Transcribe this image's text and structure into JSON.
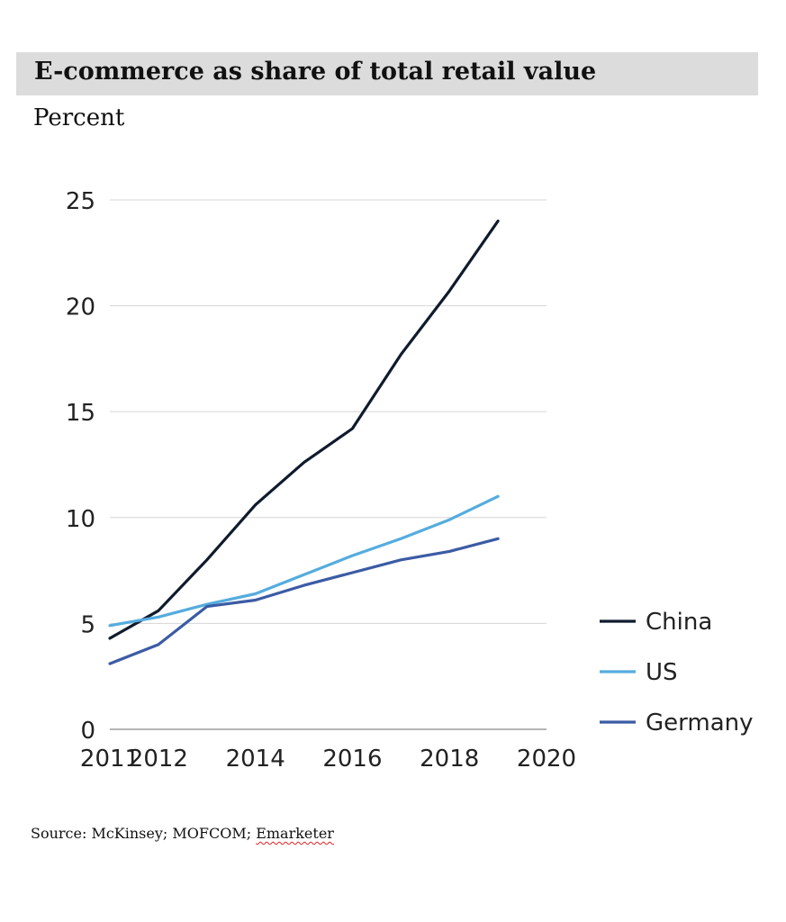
{
  "title": "E-commerce as share of total retail value",
  "subtitle": "Percent",
  "source": {
    "prefix": "Source: McKinsey; MOFCOM; ",
    "underlined": "Emarketer"
  },
  "colors": {
    "China": "#0f1b2d",
    "US": "#55acde",
    "Germany": "#3b5ba5",
    "grid": "#d6d6d6",
    "axis": "#b4b4b4",
    "tick_text": "#222222",
    "title_bg": "#dcdcdc"
  },
  "chart_data": {
    "type": "line",
    "title": "E-commerce as share of total retail value",
    "ylabel": "Percent",
    "xlabel": "",
    "xlim": [
      2011,
      2020
    ],
    "ylim": [
      0,
      25
    ],
    "xticks": [
      2011,
      2012,
      2014,
      2016,
      2018,
      2020
    ],
    "yticks": [
      0,
      5,
      10,
      15,
      20,
      25
    ],
    "grid": "horizontal",
    "legend_position": "right",
    "series": [
      {
        "name": "China",
        "x": [
          2011,
          2012,
          2013,
          2014,
          2015,
          2016,
          2017,
          2018,
          2019
        ],
        "values": [
          4.3,
          5.6,
          8.0,
          10.6,
          12.6,
          14.2,
          17.7,
          20.7,
          24.0
        ]
      },
      {
        "name": "US",
        "x": [
          2011,
          2012,
          2013,
          2014,
          2015,
          2016,
          2017,
          2018,
          2019
        ],
        "values": [
          4.9,
          5.3,
          5.9,
          6.4,
          7.3,
          8.2,
          9.0,
          9.9,
          11.0
        ]
      },
      {
        "name": "Germany",
        "x": [
          2011,
          2012,
          2013,
          2014,
          2015,
          2016,
          2017,
          2018,
          2019
        ],
        "values": [
          3.1,
          4.0,
          5.8,
          6.1,
          6.8,
          7.4,
          8.0,
          8.4,
          9.0
        ]
      }
    ]
  }
}
